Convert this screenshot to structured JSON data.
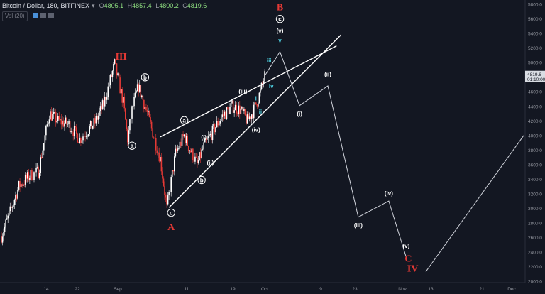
{
  "header": {
    "symbol": "Bitcoin / Dollar, 180, BITFINEX",
    "dropdown_icon": "chevron-down-icon",
    "open_key": "O",
    "open": "4805.1",
    "high_key": "H",
    "high": "4857.4",
    "low_key": "L",
    "low": "4800.2",
    "close_key": "C",
    "close": "4819.6",
    "volume_label": "Vol (20)"
  },
  "colors": {
    "background": "#131722",
    "up_candle": "#ffffff",
    "down_candle": "#e53935",
    "wave_line": "#ffffff",
    "forecast_line": "#d1d4dc",
    "major_label": "#e53935",
    "minor_label": "#4dd0e1",
    "price_badge": "#d9dde3"
  },
  "chart_data": {
    "type": "candlestick",
    "x_ticks": [
      "14",
      "22",
      "Sep",
      "11",
      "19",
      "Oct",
      "9",
      "23",
      "Nov",
      "13",
      "21",
      "Dec",
      "11"
    ],
    "y_ticks": [
      "2000.0",
      "2200.0",
      "2400.0",
      "2600.0",
      "2800.0",
      "3000.0",
      "3200.0",
      "3400.0",
      "3600.0",
      "3800.0",
      "4000.0",
      "4200.0",
      "4400.0",
      "4600.0",
      "4800.0",
      "5000.0",
      "5200.0",
      "5400.0",
      "5600.0",
      "5800.0"
    ],
    "ylim": [
      1980,
      5860
    ],
    "last_price": "4819.6",
    "countdown": "01:10:00",
    "price_path": [
      {
        "t": 0,
        "p": 2620
      },
      {
        "t": 4,
        "p": 2950
      },
      {
        "t": 8,
        "p": 3300
      },
      {
        "t": 13,
        "p": 3450
      },
      {
        "t": 17,
        "p": 3500
      },
      {
        "t": 22,
        "p": 4300
      },
      {
        "t": 26,
        "p": 4200
      },
      {
        "t": 31,
        "p": 4150
      },
      {
        "t": 36,
        "p": 3950
      },
      {
        "t": 43,
        "p": 4180
      },
      {
        "t": 47,
        "p": 4430
      },
      {
        "t": 52,
        "p": 4980
      },
      {
        "t": 56,
        "p": 4450
      },
      {
        "t": 58,
        "p": 3950
      },
      {
        "t": 60,
        "p": 4350
      },
      {
        "t": 63,
        "p": 4680
      },
      {
        "t": 67,
        "p": 4300
      },
      {
        "t": 73,
        "p": 3680
      },
      {
        "t": 76,
        "p": 3000
      },
      {
        "t": 80,
        "p": 3750
      },
      {
        "t": 84,
        "p": 4000
      },
      {
        "t": 86,
        "p": 3850
      },
      {
        "t": 90,
        "p": 3600
      },
      {
        "t": 93,
        "p": 3850
      },
      {
        "t": 96,
        "p": 4000
      },
      {
        "t": 101,
        "p": 4250
      },
      {
        "t": 106,
        "p": 4400
      },
      {
        "t": 110,
        "p": 4350
      },
      {
        "t": 113,
        "p": 4200
      },
      {
        "t": 116,
        "p": 4350
      },
      {
        "t": 119,
        "p": 4600
      },
      {
        "t": 121,
        "p": 4820
      }
    ],
    "wave_lines": [
      {
        "role": "channel-upper",
        "points": [
          [
            73,
            3980
          ],
          [
            154,
            5230
          ]
        ]
      },
      {
        "role": "channel-lower",
        "points": [
          [
            77,
            3010
          ],
          [
            156,
            5380
          ]
        ]
      },
      {
        "role": "forecast",
        "points": [
          [
            121,
            4819.6
          ],
          [
            128,
            5150
          ],
          [
            137,
            4410
          ],
          [
            150,
            4680
          ],
          [
            164,
            2880
          ],
          [
            178,
            3100
          ],
          [
            186,
            2330
          ]
        ]
      },
      {
        "role": "forecast",
        "points": [
          [
            195,
            2130
          ],
          [
            240,
            4000
          ]
        ]
      }
    ],
    "wave_labels": [
      {
        "text": "III",
        "t": 55,
        "p": 5040,
        "style": "major"
      },
      {
        "text": "b",
        "t": 66,
        "p": 4770,
        "style": "circle"
      },
      {
        "text": "a",
        "t": 60,
        "p": 3830,
        "style": "circle"
      },
      {
        "text": "a",
        "t": 84,
        "p": 4180,
        "style": "circle"
      },
      {
        "text": "c",
        "t": 78,
        "p": 2910,
        "style": "circle"
      },
      {
        "text": "A",
        "t": 78,
        "p": 2700,
        "style": "major"
      },
      {
        "text": "b",
        "t": 92,
        "p": 3360,
        "style": "circle"
      },
      {
        "text": "(i)",
        "t": 93,
        "p": 3950,
        "style": "minor-white"
      },
      {
        "text": "(ii)",
        "t": 96,
        "p": 3600,
        "style": "minor-white"
      },
      {
        "text": "(iii)",
        "t": 111,
        "p": 4580,
        "style": "minor-white"
      },
      {
        "text": "(iv)",
        "t": 117,
        "p": 4050,
        "style": "minor-white"
      },
      {
        "text": "i",
        "t": 117,
        "p": 4480,
        "style": "minor"
      },
      {
        "text": "ii",
        "t": 119,
        "p": 4300,
        "style": "minor"
      },
      {
        "text": "iii",
        "t": 123,
        "p": 5000,
        "style": "minor"
      },
      {
        "text": "iv",
        "t": 124,
        "p": 4650,
        "style": "minor"
      },
      {
        "text": "v",
        "t": 128,
        "p": 5280,
        "style": "minor"
      },
      {
        "text": "(v)",
        "t": 128,
        "p": 5410,
        "style": "minor-white"
      },
      {
        "text": "c",
        "t": 128,
        "p": 5570,
        "style": "circle"
      },
      {
        "text": "B",
        "t": 128,
        "p": 5720,
        "style": "major"
      },
      {
        "text": "(i)",
        "t": 137,
        "p": 4270,
        "style": "minor-white"
      },
      {
        "text": "(ii)",
        "t": 150,
        "p": 4810,
        "style": "minor-white"
      },
      {
        "text": "(iii)",
        "t": 164,
        "p": 2740,
        "style": "minor-white"
      },
      {
        "text": "(iv)",
        "t": 178,
        "p": 3180,
        "style": "minor-white"
      },
      {
        "text": "(v)",
        "t": 186,
        "p": 2460,
        "style": "minor-white"
      },
      {
        "text": "C",
        "t": 187,
        "p": 2270,
        "style": "major"
      },
      {
        "text": "IV",
        "t": 189,
        "p": 2130,
        "style": "major"
      }
    ]
  }
}
